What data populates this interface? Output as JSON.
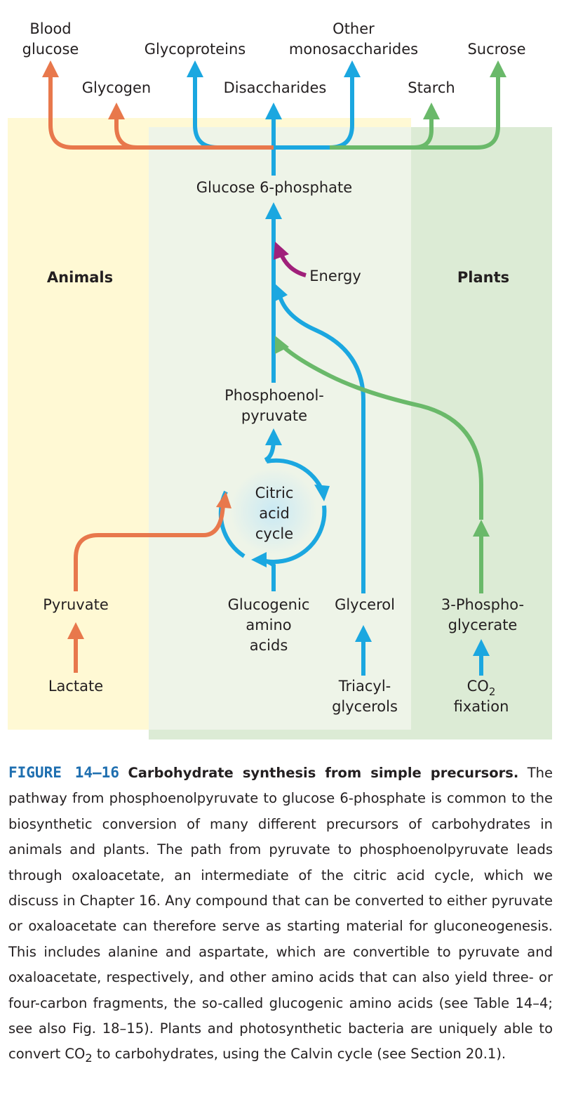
{
  "diagram": {
    "regions": {
      "animals": "Animals",
      "plants": "Plants"
    },
    "products": {
      "blood_glucose": [
        "Blood",
        "glucose"
      ],
      "glycogen": "Glycogen",
      "glycoproteins": "Glycoproteins",
      "disaccharides": "Disaccharides",
      "other_monosaccharides": [
        "Other",
        "monosaccharides"
      ],
      "starch": "Starch",
      "sucrose": "Sucrose"
    },
    "intermediates": {
      "glucose_6_phosphate": "Glucose 6-phosphate",
      "energy": "Energy",
      "phosphoenolpyruvate": [
        "Phosphoenol-",
        "pyruvate"
      ],
      "citric_acid_cycle": [
        "Citric",
        "acid",
        "cycle"
      ]
    },
    "precursors": {
      "pyruvate": "Pyruvate",
      "glucogenic_amino_acids": [
        "Glucogenic",
        "amino",
        "acids"
      ],
      "glycerol": "Glycerol",
      "three_phosphoglycerate": [
        "3-Phospho-",
        "glycerate"
      ],
      "lactate": "Lactate",
      "triacylglycerols": [
        "Triacyl-",
        "glycerols"
      ],
      "co2_fixation": {
        "formula_main": "CO",
        "formula_sub": "2",
        "line2": "fixation"
      }
    },
    "colors": {
      "animals_bg": "#fff9d4",
      "common_bg": "#eef4e8",
      "plants_bg": "#dcebd5",
      "blue": "#1ba7e0",
      "orange": "#e8784c",
      "green": "#6ab96a",
      "purple": "#a0207a"
    }
  },
  "caption": {
    "figure_label": "FIGURE 14–16",
    "title": "Carbohydrate synthesis from simple precursors.",
    "body_part1": "The pathway from phosphoenolpyruvate to glucose 6-phosphate is common to the biosynthetic conversion of many different precursors of carbohydrates in animals and plants. The path from pyruvate to phosphoenolpyruvate leads through oxaloacetate, an intermediate of the citric acid cycle, which we discuss in Chapter 16. Any compound that can be converted to either pyruvate or oxaloacetate can therefore serve as starting material for gluconeogenesis. This includes alanine and aspartate, which are convertible to pyruvate and oxaloacetate, respectively, and other amino acids that can also yield three- or four-carbon fragments, the so-called glucogenic amino acids (see Table 14–4; see also Fig. 18–15). Plants and photosynthetic bacteria are uniquely able to convert CO",
    "body_sub": "2",
    "body_part2": " to carbohydrates, using the Calvin cycle (see Section 20.1)."
  }
}
